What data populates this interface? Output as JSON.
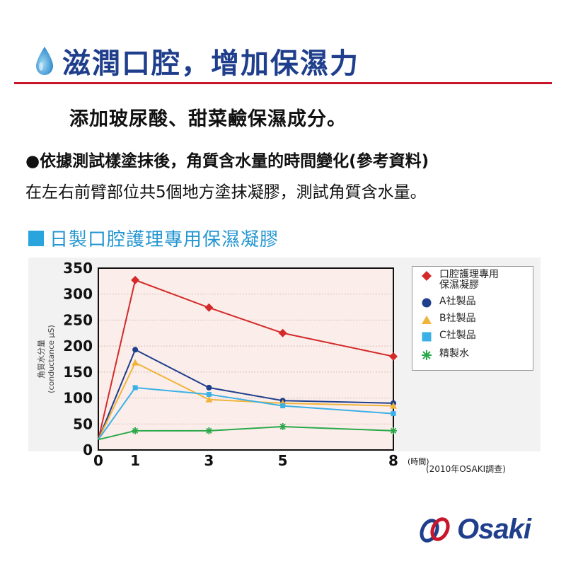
{
  "header": {
    "title": "滋潤口腔，增加保濕力",
    "icon": "water-drop-icon",
    "rule_color": "#c8162b",
    "title_color": "#1f3e8c"
  },
  "subtitle": "添加玻尿酸、甜菜鹼保濕成分。",
  "description": {
    "line1": "●依據測試樣塗抹後，角質含水量的時間變化(參考資料)",
    "line2": "在左右前臂部位共5個地方塗抹凝膠，測試角質含水量。"
  },
  "section": {
    "title": "日製口腔護理專用保濕凝膠",
    "square_color": "#2aa4dd"
  },
  "chart_data": {
    "type": "line",
    "x": [
      0,
      1,
      3,
      5,
      8
    ],
    "xticks": [
      "0",
      "1",
      "3",
      "5",
      "8"
    ],
    "x_unit": "(時間)",
    "ylabel": "角質水分量\n(conductance μS)",
    "ylim": [
      0,
      350
    ],
    "yticks": [
      0,
      50,
      100,
      150,
      200,
      250,
      300,
      350
    ],
    "grid": "horizontal",
    "legend_position": "right",
    "series": [
      {
        "name": "口腔護理專用保濕凝膠",
        "legend_label": "口腔護理專用\n保濕凝膠",
        "color": "#d42a2a",
        "marker": "diamond",
        "values": [
          20,
          327,
          274,
          225,
          180
        ]
      },
      {
        "name": "A社製品",
        "color": "#1f3e8c",
        "marker": "circle",
        "values": [
          20,
          193,
          120,
          95,
          90
        ]
      },
      {
        "name": "B社製品",
        "color": "#f0b43c",
        "marker": "triangle",
        "values": [
          20,
          168,
          97,
          90,
          85
        ]
      },
      {
        "name": "C社製品",
        "color": "#3ab0e6",
        "marker": "square",
        "values": [
          20,
          120,
          107,
          85,
          70
        ]
      },
      {
        "name": "精製水",
        "color": "#2ba84a",
        "marker": "asterisk",
        "values": [
          20,
          37,
          37,
          45,
          37
        ]
      }
    ],
    "source": "(2010年OSAKI調查)"
  },
  "logo": {
    "text": "Osaki",
    "color": "#1f3e8c",
    "accent": "#c8162b"
  }
}
